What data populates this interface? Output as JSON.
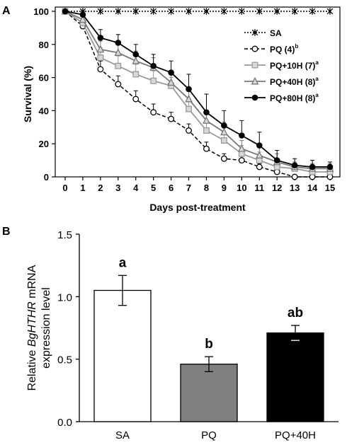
{
  "chart_data": [
    {
      "panel": "A",
      "type": "line",
      "xlabel": "Days post-treatment",
      "ylabel": "Survival (%)",
      "x": [
        0,
        1,
        2,
        3,
        4,
        5,
        6,
        7,
        8,
        9,
        10,
        11,
        12,
        13,
        14,
        15
      ],
      "xlim": [
        0,
        15
      ],
      "ylim": [
        0,
        100
      ],
      "yticks": [
        0,
        20,
        40,
        60,
        80,
        100
      ],
      "legend_position": "top-right",
      "series": [
        {
          "name": "SA",
          "sup": "",
          "marker": "star",
          "line": "dotted",
          "color": "#000000",
          "values": [
            100,
            100,
            100,
            100,
            100,
            100,
            100,
            100,
            100,
            100,
            100,
            100,
            100,
            100,
            100,
            100
          ],
          "err": [
            0,
            0,
            0,
            0,
            0,
            0,
            0,
            0,
            0,
            0,
            0,
            0,
            0,
            0,
            0,
            0
          ]
        },
        {
          "name": "PQ (4)",
          "sup": "b",
          "marker": "circle-open",
          "line": "dashed",
          "color": "#000000",
          "values": [
            100,
            91,
            65,
            56,
            47,
            39,
            35,
            28,
            17,
            11,
            10,
            6,
            3,
            0,
            0,
            0
          ],
          "err": [
            0,
            2,
            5,
            5,
            5,
            5,
            4,
            4,
            4,
            3,
            3,
            2,
            2,
            1,
            1,
            1
          ]
        },
        {
          "name": "PQ+10H (7)",
          "sup": "a",
          "marker": "square-open",
          "line": "solid",
          "color": "#9a9a9a",
          "values": [
            100,
            93,
            72,
            67,
            62,
            58,
            55,
            41,
            28,
            22,
            14,
            10,
            6,
            5,
            3,
            3
          ],
          "err": [
            0,
            4,
            6,
            6,
            6,
            6,
            5,
            6,
            6,
            5,
            5,
            5,
            4,
            3,
            3,
            3
          ]
        },
        {
          "name": "PQ+40H (8)",
          "sup": "a",
          "marker": "triangle-open",
          "line": "solid",
          "color": "#777777",
          "values": [
            100,
            95,
            77,
            75,
            70,
            66,
            57,
            47,
            34,
            27,
            17,
            13,
            9,
            6,
            5,
            5
          ],
          "err": [
            0,
            3,
            5,
            6,
            6,
            6,
            6,
            6,
            6,
            6,
            5,
            5,
            5,
            3,
            3,
            3
          ]
        },
        {
          "name": "PQ+80H (8)",
          "sup": "a",
          "marker": "circle-filled",
          "line": "solid",
          "color": "#000000",
          "values": [
            100,
            98,
            84,
            81,
            74,
            67,
            63,
            53,
            39,
            31,
            25,
            19,
            10,
            7,
            6,
            6
          ],
          "err": [
            0,
            2,
            5,
            5,
            6,
            7,
            7,
            9,
            11,
            9,
            9,
            8,
            6,
            4,
            4,
            3
          ]
        }
      ]
    },
    {
      "panel": "B",
      "type": "bar",
      "ylabel_line1_pre": "Relative ",
      "ylabel_line1_italic": "BgHTHR",
      "ylabel_line1_post": " mRNA",
      "ylabel_line2": "expression level",
      "ylim": [
        0,
        1.5
      ],
      "yticks": [
        "0.0",
        "0.5",
        "1.0",
        "1.5"
      ],
      "categories": [
        "SA",
        "PQ",
        "PQ+40H"
      ],
      "values": [
        1.05,
        0.46,
        0.71
      ],
      "err": [
        0.12,
        0.06,
        0.06
      ],
      "colors": [
        "#ffffff",
        "#808080",
        "#000000"
      ],
      "significance": [
        "a",
        "b",
        "ab"
      ]
    }
  ]
}
